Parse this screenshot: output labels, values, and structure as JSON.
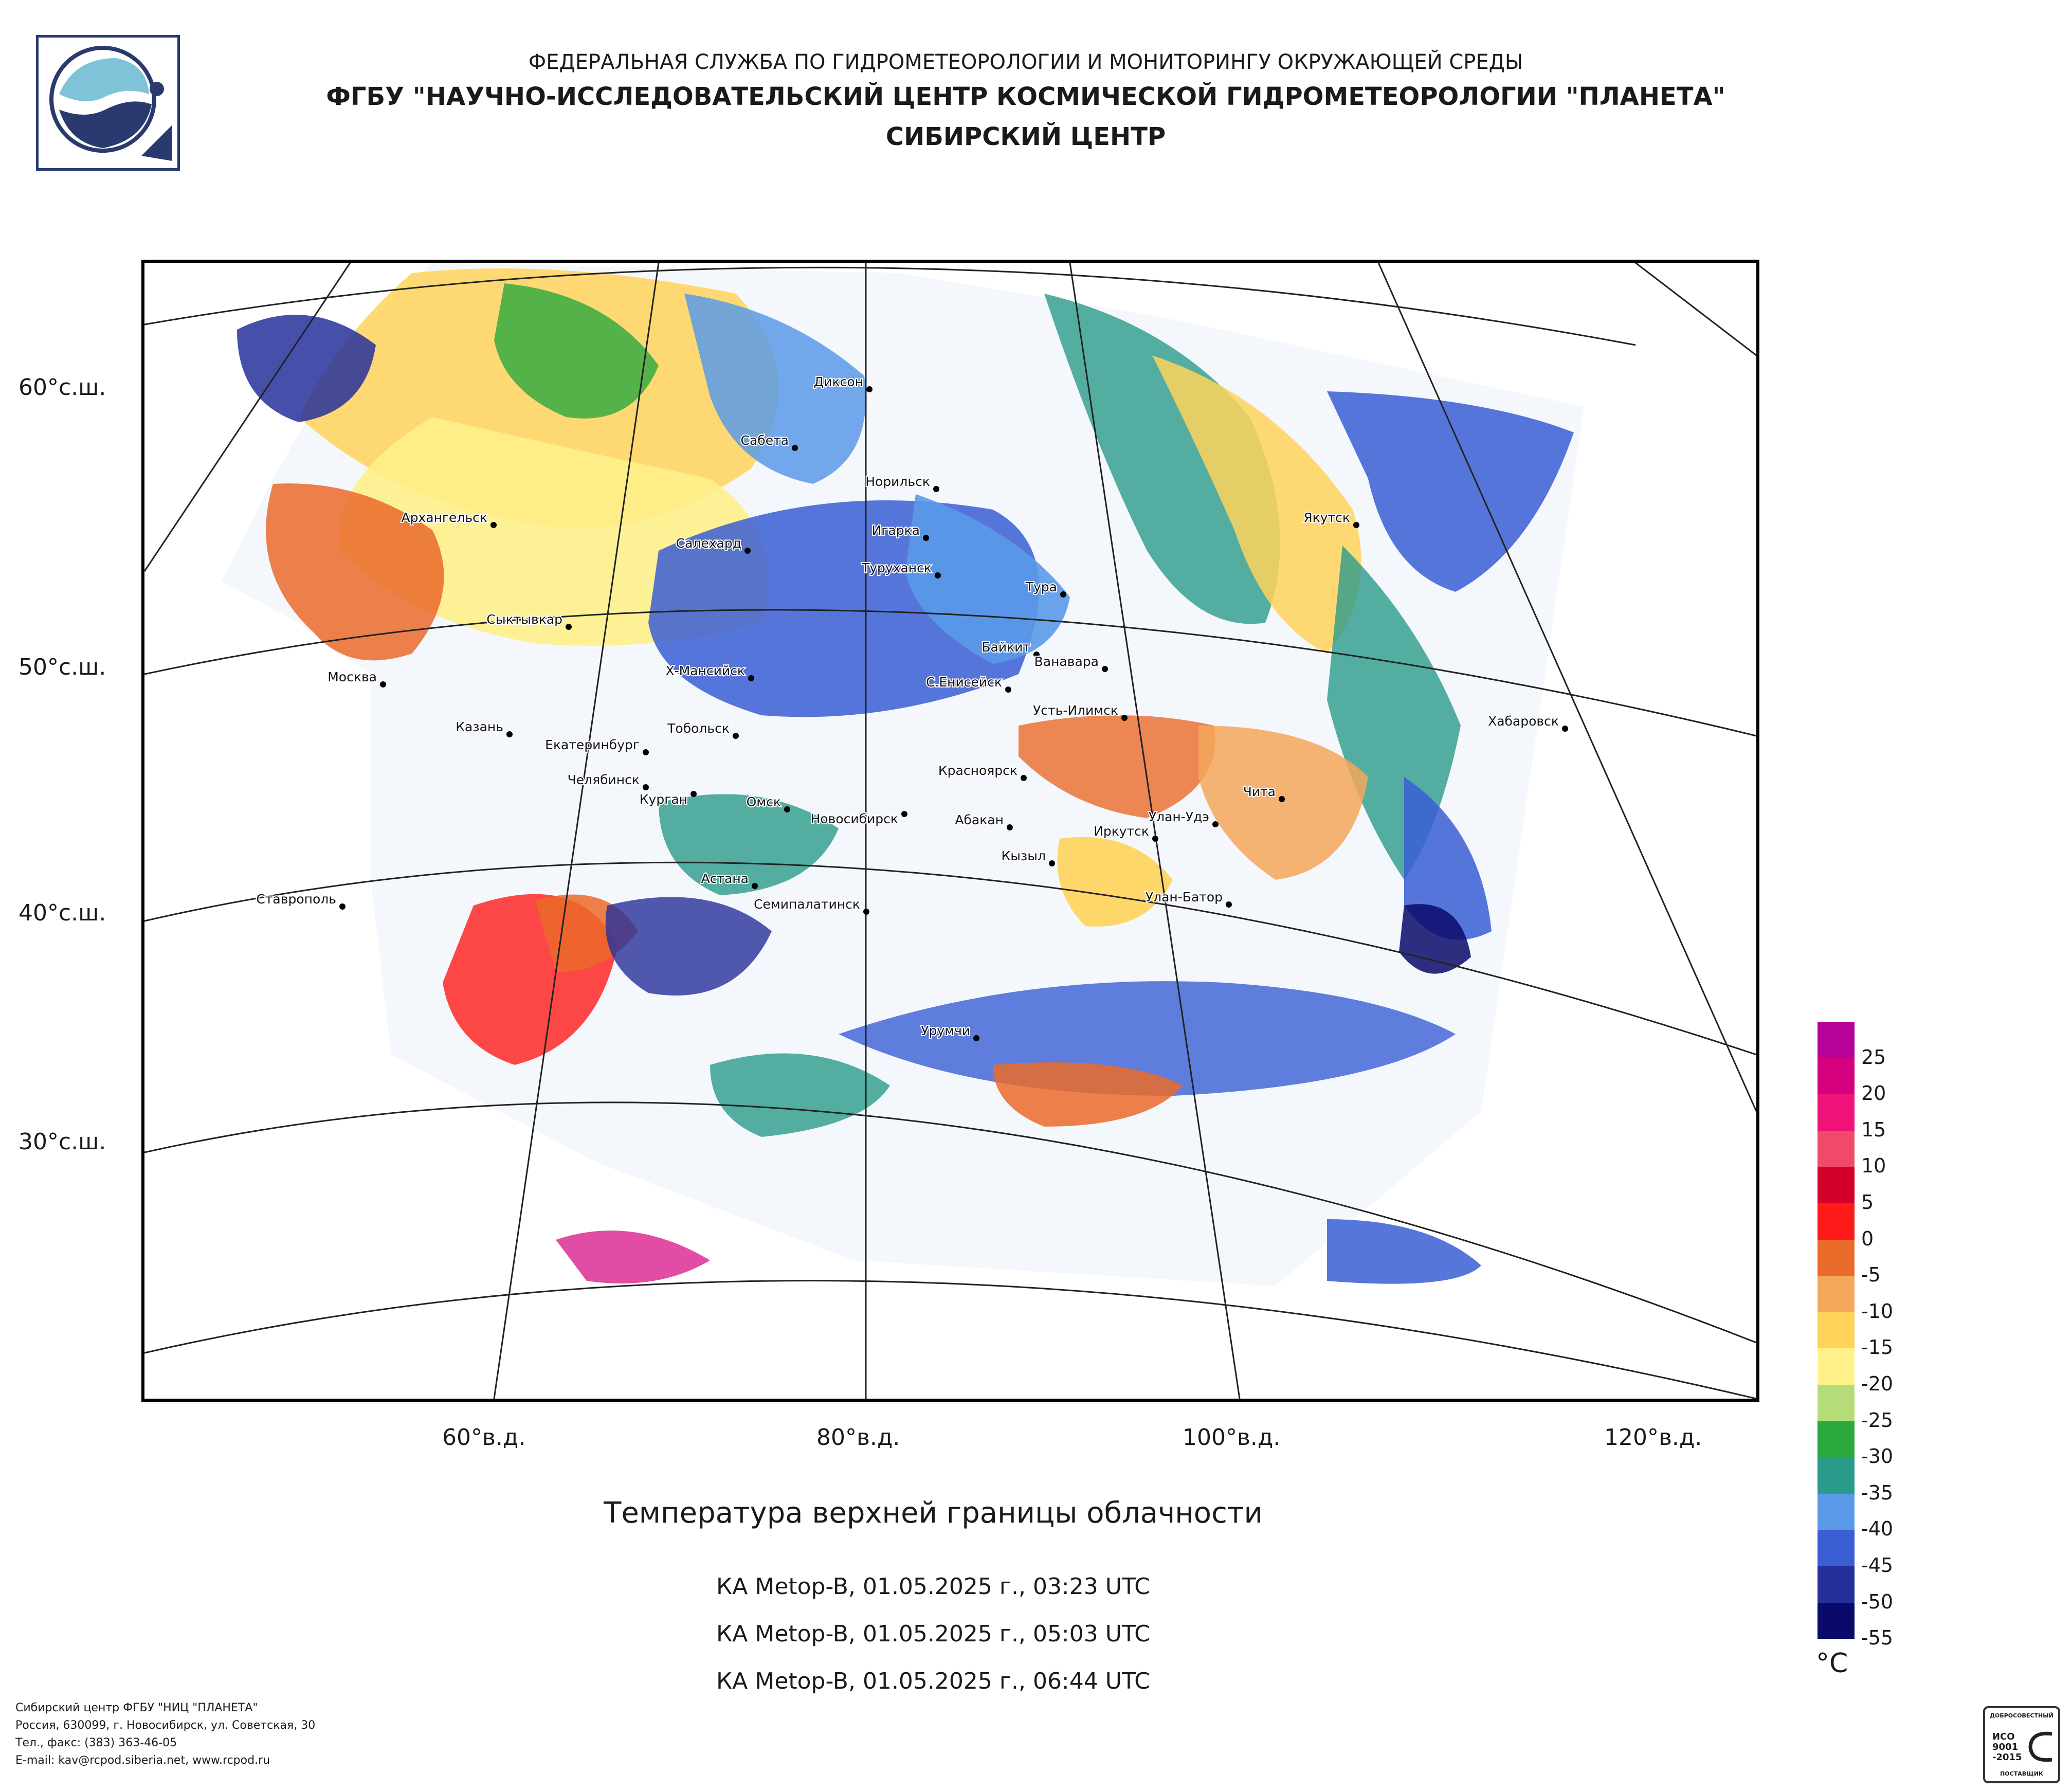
{
  "header": {
    "line1": "ФЕДЕРАЛЬНАЯ СЛУЖБА ПО ГИДРОМЕТЕОРОЛОГИИ И МОНИТОРИНГУ ОКРУЖАЮЩЕЙ СРЕДЫ",
    "line2": "ФГБУ \"НАУЧНО-ИССЛЕДОВАТЕЛЬСКИЙ ЦЕНТР КОСМИЧЕСКОЙ ГИДРОМЕТЕОРОЛОГИИ \"ПЛАНЕТА\"",
    "line3": "СИБИРСКИЙ ЦЕНТР"
  },
  "axes": {
    "lat_labels": [
      "60°с.ш.",
      "50°с.ш.",
      "40°с.ш.",
      "30°с.ш."
    ],
    "lon_labels": [
      "60°в.д.",
      "80°в.д.",
      "100°в.д.",
      "120°в.д."
    ]
  },
  "cities": [
    "Диксон",
    "Сабета",
    "Норильск",
    "Игарка",
    "Туруханск",
    "Салехард",
    "Архангельск",
    "Якутск",
    "Тура",
    "Сыктывкар",
    "Байкит",
    "Ванавара",
    "Х-Мансийск",
    "С.Енисейск",
    "Москва",
    "Усть-Илимск",
    "Хабаровск",
    "Казань",
    "Тобольск",
    "Екатеринбург",
    "Красноярск",
    "Челябинск",
    "Курган",
    "Чита",
    "Омск",
    "Новосибирск",
    "Абакан",
    "Улан-Удэ",
    "Иркутск",
    "Кызыл",
    "Астана",
    "Ставрополь",
    "Семипалатинск",
    "Улан-Батор",
    "Урумчи"
  ],
  "title": "Температура верхней границы облачности",
  "captions": [
    "КА Metop-B, 01.05.2025 г., 03:23 UTC",
    "КА Metop-B, 01.05.2025 г., 05:03 UTC",
    "КА Metop-B, 01.05.2025 г., 06:44 UTC"
  ],
  "footer": {
    "line1": "Сибирский центр ФГБУ \"НИЦ \"ПЛАНЕТА\"",
    "line2": "Россия, 630099, г. Новосибирск, ул. Советская, 30",
    "line3": "Тел., факс: (383) 363-46-05",
    "line4": "E-mail: kav@rcpod.siberia.net, www.rcpod.ru"
  },
  "colorbar": {
    "unit": "°C",
    "labels": [
      "25",
      "20",
      "15",
      "10",
      "5",
      "0",
      "-5",
      "-10",
      "-15",
      "-20",
      "-25",
      "-30",
      "-35",
      "-40",
      "-45",
      "-50",
      "-55"
    ],
    "colors": [
      "#b8009a",
      "#d4007e",
      "#f0127a",
      "#f04a6a",
      "#d4002a",
      "#ff1a1a",
      "#ea6a2a",
      "#f3a75a",
      "#ffd35a",
      "#fff08a",
      "#b5dc78",
      "#2aa83e",
      "#2a9a8a",
      "#5a9ae8",
      "#3a5ed4",
      "#26309a",
      "#0a0a6a"
    ]
  },
  "badge": {
    "top": "ДОБРОСОВЕСТНЫЙ",
    "line1": "ИСО",
    "line2": "9001",
    "line3": "-2015",
    "bottom": "ПОСТАВЩИК"
  }
}
